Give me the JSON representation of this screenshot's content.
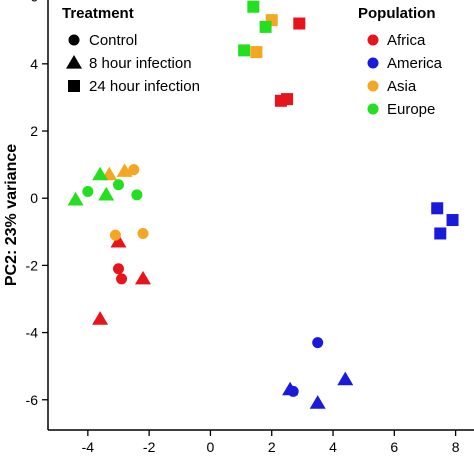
{
  "chart_data": {
    "type": "scatter",
    "title": "",
    "xlabel": "",
    "ylabel": "PC2: 23% variance",
    "xlim": [
      -5.3,
      8.6
    ],
    "ylim": [
      -6.9,
      5.9
    ],
    "xticks": [
      "-4",
      "-2",
      "0",
      "2",
      "4",
      "6",
      "8"
    ],
    "yticks": [
      "-6",
      "-4",
      "-2",
      "0",
      "2",
      "4",
      "6"
    ],
    "grid": false,
    "legend_treatment": {
      "title": "Treatment",
      "items": [
        {
          "label": "Control",
          "shape": "circle"
        },
        {
          "label": "8 hour infection",
          "shape": "triangle"
        },
        {
          "label": "24 hour infection",
          "shape": "square"
        }
      ]
    },
    "legend_population": {
      "title": "Population",
      "items": [
        {
          "label": "Africa",
          "color": "#e8141c"
        },
        {
          "label": "America",
          "color": "#1a1adb"
        },
        {
          "label": "Asia",
          "color": "#f5a623"
        },
        {
          "label": "Europe",
          "color": "#22e01f"
        }
      ]
    },
    "points": [
      {
        "x": -3.0,
        "y": -2.1,
        "pop": "Africa",
        "shape": "circle"
      },
      {
        "x": -2.9,
        "y": -2.4,
        "pop": "Africa",
        "shape": "circle"
      },
      {
        "x": -3.0,
        "y": -1.3,
        "pop": "Africa",
        "shape": "triangle"
      },
      {
        "x": -2.2,
        "y": -2.4,
        "pop": "Africa",
        "shape": "triangle"
      },
      {
        "x": -3.6,
        "y": -3.6,
        "pop": "Africa",
        "shape": "triangle"
      },
      {
        "x": 2.3,
        "y": 2.9,
        "pop": "Africa",
        "shape": "square"
      },
      {
        "x": 2.5,
        "y": 2.95,
        "pop": "Africa",
        "shape": "square"
      },
      {
        "x": 2.9,
        "y": 5.2,
        "pop": "Africa",
        "shape": "square"
      },
      {
        "x": 3.5,
        "y": -4.3,
        "pop": "America",
        "shape": "circle"
      },
      {
        "x": 2.7,
        "y": -5.75,
        "pop": "America",
        "shape": "circle"
      },
      {
        "x": 2.6,
        "y": -5.7,
        "pop": "America",
        "shape": "triangle"
      },
      {
        "x": 3.5,
        "y": -6.1,
        "pop": "America",
        "shape": "triangle"
      },
      {
        "x": 4.4,
        "y": -5.4,
        "pop": "America",
        "shape": "triangle"
      },
      {
        "x": 7.4,
        "y": -0.3,
        "pop": "America",
        "shape": "square"
      },
      {
        "x": 7.9,
        "y": -0.65,
        "pop": "America",
        "shape": "square"
      },
      {
        "x": 7.5,
        "y": -1.05,
        "pop": "America",
        "shape": "square"
      },
      {
        "x": -2.5,
        "y": 0.85,
        "pop": "Asia",
        "shape": "circle"
      },
      {
        "x": -3.1,
        "y": -1.1,
        "pop": "Asia",
        "shape": "circle"
      },
      {
        "x": -2.2,
        "y": -1.05,
        "pop": "Asia",
        "shape": "circle"
      },
      {
        "x": -3.3,
        "y": 0.7,
        "pop": "Asia",
        "shape": "triangle"
      },
      {
        "x": -2.8,
        "y": 0.8,
        "pop": "Asia",
        "shape": "triangle"
      },
      {
        "x": 1.5,
        "y": 4.35,
        "pop": "Asia",
        "shape": "square"
      },
      {
        "x": 2.0,
        "y": 5.3,
        "pop": "Asia",
        "shape": "square"
      },
      {
        "x": -4.0,
        "y": 0.2,
        "pop": "Europe",
        "shape": "circle"
      },
      {
        "x": -3.0,
        "y": 0.4,
        "pop": "Europe",
        "shape": "circle"
      },
      {
        "x": -2.4,
        "y": 0.1,
        "pop": "Europe",
        "shape": "circle"
      },
      {
        "x": -4.4,
        "y": -0.05,
        "pop": "Europe",
        "shape": "triangle"
      },
      {
        "x": -3.6,
        "y": 0.7,
        "pop": "Europe",
        "shape": "triangle"
      },
      {
        "x": -3.4,
        "y": 0.1,
        "pop": "Europe",
        "shape": "triangle"
      },
      {
        "x": 1.1,
        "y": 4.4,
        "pop": "Europe",
        "shape": "square"
      },
      {
        "x": 1.4,
        "y": 5.7,
        "pop": "Europe",
        "shape": "square"
      },
      {
        "x": 1.8,
        "y": 5.1,
        "pop": "Europe",
        "shape": "square"
      }
    ]
  }
}
